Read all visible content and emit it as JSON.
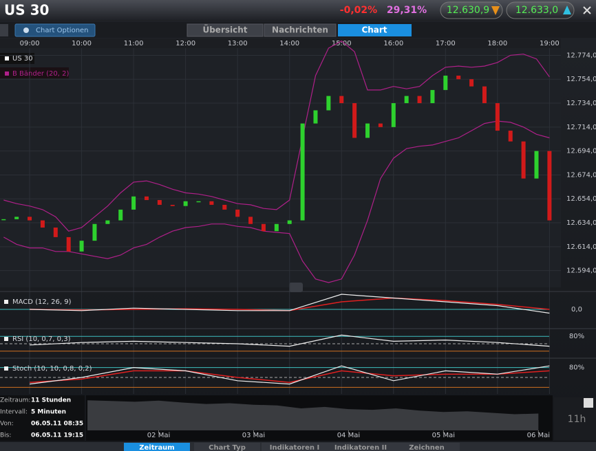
{
  "header": {
    "title": "US 30",
    "change": "-0,02%",
    "stat": "29,31%",
    "bid": "12.630,9",
    "ask": "12.633,0"
  },
  "toolbar": {
    "options": "Chart Optionen",
    "tabs": [
      "Übersicht",
      "Nachrichten",
      "Chart"
    ]
  },
  "chart_data": [
    {
      "type": "candlestick",
      "up_color": "#2ed12e",
      "down_color": "#d11a1a",
      "x": [
        8.5,
        8.75,
        9,
        9.25,
        9.5,
        9.75,
        10,
        10.25,
        10.5,
        10.75,
        11,
        11.25,
        11.5,
        11.75,
        12,
        12.25,
        12.5,
        12.75,
        13,
        13.25,
        13.5,
        13.75,
        14,
        14.25,
        14.5,
        14.75,
        15,
        15.25,
        15.5,
        15.75,
        16,
        16.25,
        16.5,
        16.75,
        17,
        17.25,
        17.5,
        17.75,
        18,
        18.25,
        18.5,
        18.75,
        19
      ],
      "series": [
        {
          "name": "US 30",
          "color": "#ffffff",
          "values": [
            12637,
            12639,
            12636,
            12630,
            12622,
            12610,
            12619,
            12633,
            12636,
            12645,
            12656,
            12653,
            12649,
            12648,
            12652,
            12652,
            12649,
            12645,
            12639,
            12633,
            12627,
            12633,
            12636,
            12717,
            12728,
            12740,
            12734,
            12705,
            12717,
            12714,
            12734,
            12740,
            12734,
            12745,
            12757,
            12754,
            12748,
            12734,
            12711,
            12702,
            12671,
            12694,
            12636
          ]
        }
      ],
      "bands": {
        "name": "B Bänder (20, 2)",
        "color": "#b0208a",
        "upper": [
          12653,
          12650,
          12648,
          12645,
          12639,
          12627,
          12630,
          12639,
          12648,
          12659,
          12668,
          12669,
          12666,
          12662,
          12659,
          12658,
          12656,
          12653,
          12650,
          12649,
          12646,
          12645,
          12653,
          12705,
          12757,
          12780,
          12786,
          12777,
          12745,
          12745,
          12748,
          12746,
          12748,
          12757,
          12764,
          12765,
          12764,
          12765,
          12768,
          12774,
          12775,
          12771,
          12756
        ],
        "lower": [
          12622,
          12616,
          12613,
          12613,
          12610,
          12610,
          12608,
          12606,
          12604,
          12607,
          12613,
          12616,
          12622,
          12627,
          12630,
          12631,
          12633,
          12633,
          12631,
          12630,
          12627,
          12626,
          12625,
          12602,
          12587,
          12584,
          12587,
          12607,
          12636,
          12671,
          12688,
          12696,
          12698,
          12699,
          12702,
          12705,
          12711,
          12717,
          12719,
          12718,
          12714,
          12708,
          12705
        ]
      },
      "xlim": [
        8.43,
        19.22
      ],
      "ylim": [
        12580,
        12780
      ],
      "xticks": [
        {
          "value": 9,
          "label": "09:00"
        },
        {
          "value": 10,
          "label": "10:00"
        },
        {
          "value": 11,
          "label": "11:00"
        },
        {
          "value": 12,
          "label": "12:00"
        },
        {
          "value": 13,
          "label": "13:00"
        },
        {
          "value": 14,
          "label": "14:00"
        },
        {
          "value": 15,
          "label": "15:00"
        },
        {
          "value": 16,
          "label": "16:00"
        },
        {
          "value": 17,
          "label": "17:00"
        },
        {
          "value": 18,
          "label": "18:00"
        },
        {
          "value": 19,
          "label": "19:00"
        }
      ],
      "yticks": [
        {
          "value": 12594,
          "label": "12.594,0"
        },
        {
          "value": 12614,
          "label": "12.614,0"
        },
        {
          "value": 12634,
          "label": "12.634,0"
        },
        {
          "value": 12654,
          "label": "12.654,0"
        },
        {
          "value": 12674,
          "label": "12.674,0"
        },
        {
          "value": 12694,
          "label": "12.694,0"
        },
        {
          "value": 12714,
          "label": "12.714,0"
        },
        {
          "value": 12734,
          "label": "12.734,0"
        },
        {
          "value": 12754,
          "label": "12.754,0"
        },
        {
          "value": 12774,
          "label": "12.774,0"
        }
      ],
      "grid": true
    },
    {
      "type": "line",
      "x": [
        9,
        10,
        11,
        12,
        13,
        14,
        15,
        16,
        17,
        18,
        19
      ],
      "xlim": [
        8.43,
        19.22
      ],
      "ylim": [
        -12,
        12
      ],
      "series": [
        {
          "name": "MACD (12, 26, 9)",
          "color": "#f0f0f0",
          "values": [
            0,
            -1,
            1,
            0,
            -1,
            -1,
            12,
            9,
            6,
            3,
            -3
          ]
        }
      ],
      "signal": {
        "color": "#e02020",
        "values": [
          0,
          -0.5,
          0,
          0.5,
          0,
          -1,
          6,
          9,
          7,
          4,
          0
        ]
      },
      "yticks": [
        {
          "value": 0,
          "label": "0,0"
        }
      ]
    },
    {
      "type": "line",
      "x": [
        9,
        10,
        11,
        12,
        13,
        14,
        15,
        16,
        17,
        18,
        19
      ],
      "xlim": [
        8.43,
        19.22
      ],
      "ylim": [
        0,
        100
      ],
      "series": [
        {
          "name": "RSI (10, 0,7, 0,3)",
          "color": "#f0f0f0",
          "values": [
            45,
            55,
            60,
            55,
            50,
            40,
            85,
            60,
            65,
            55,
            40
          ]
        }
      ],
      "levels": [
        50,
        20
      ],
      "yticks": [
        {
          "value": 80,
          "label": "80%"
        }
      ]
    },
    {
      "type": "line",
      "x": [
        9,
        10,
        11,
        12,
        13,
        14,
        15,
        16,
        17,
        18,
        19
      ],
      "xlim": [
        8.43,
        19.22
      ],
      "ylim": [
        0,
        100
      ],
      "series": [
        {
          "name": "Stoch (10, 10, 0,8, 0,2)",
          "color": "#f0f0f0",
          "values": [
            30,
            50,
            80,
            70,
            40,
            30,
            85,
            40,
            70,
            60,
            85
          ]
        }
      ],
      "signal": {
        "color": "#e02020",
        "values": [
          35,
          45,
          70,
          70,
          50,
          35,
          70,
          55,
          60,
          60,
          70
        ]
      },
      "levels": [
        50,
        20
      ],
      "yticks": [
        {
          "value": 80,
          "label": "80%"
        }
      ]
    },
    {
      "type": "area",
      "x": [
        0.25,
        0.5,
        0.75,
        1,
        1.25,
        1.5,
        1.75,
        2,
        2.25,
        2.5,
        2.75,
        3,
        3.25,
        3.5,
        3.75,
        4,
        4.25,
        4.5,
        4.75,
        5
      ],
      "values": [
        12810,
        12800,
        12790,
        12805,
        12780,
        12760,
        12770,
        12750,
        12740,
        12700,
        12720,
        12690,
        12680,
        12700,
        12670,
        12650,
        12660,
        12640,
        12620,
        12630
      ],
      "xlim": [
        0.235,
        5.15
      ],
      "ylim": [
        12400,
        12850
      ],
      "xticks": [
        {
          "value": 1,
          "label": "02 Mai"
        },
        {
          "value": 2,
          "label": "03 Mai"
        },
        {
          "value": 3,
          "label": "04 Mai"
        },
        {
          "value": 4,
          "label": "05 Mai"
        },
        {
          "value": 5,
          "label": "06 Mai"
        }
      ]
    }
  ],
  "info": {
    "rows": [
      [
        "Zeitraum:",
        "11 Stunden"
      ],
      [
        "Intervall:",
        "5 Minuten"
      ],
      [
        "Von:",
        "06.05.11 08:35"
      ],
      [
        "Bis:",
        "06.05.11 19:15"
      ]
    ]
  },
  "range_label": "11h",
  "bottom_tabs": [
    "Zeitraum",
    "Chart Typ",
    "Indikatoren I",
    "Indikatoren II",
    "Zeichnen"
  ]
}
